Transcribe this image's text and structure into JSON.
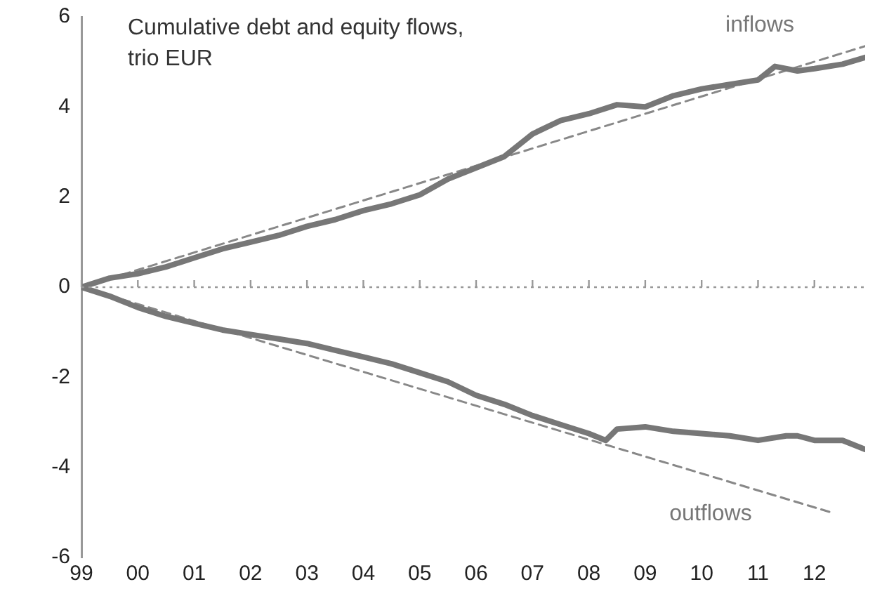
{
  "chart_data": {
    "type": "line",
    "title": "Cumulative debt and equity flows, trio EUR",
    "xlim": [
      1999,
      2012.9
    ],
    "xticks": [
      {
        "value": 1999,
        "label": "99"
      },
      {
        "value": 2000,
        "label": "00"
      },
      {
        "value": 2001,
        "label": "01"
      },
      {
        "value": 2002,
        "label": "02"
      },
      {
        "value": 2003,
        "label": "03"
      },
      {
        "value": 2004,
        "label": "04"
      },
      {
        "value": 2005,
        "label": "05"
      },
      {
        "value": 2006,
        "label": "06"
      },
      {
        "value": 2007,
        "label": "07"
      },
      {
        "value": 2008,
        "label": "08"
      },
      {
        "value": 2009,
        "label": "09"
      },
      {
        "value": 2010,
        "label": "10"
      },
      {
        "value": 2011,
        "label": "11"
      },
      {
        "value": 2012,
        "label": "12"
      }
    ],
    "ylim": [
      -6,
      6
    ],
    "yticks": [
      -6,
      -4,
      -2,
      0,
      2,
      4,
      6
    ],
    "grid": false,
    "legend": false,
    "marker": "none",
    "ref_lines": [
      {
        "axis": "y",
        "value": 0,
        "line_style": "dotted",
        "color": "#999999"
      }
    ],
    "series": [
      {
        "name": "inflows",
        "color": "#777777",
        "line_style": "solid",
        "x": [
          1999,
          1999.5,
          2000,
          2000.5,
          2001,
          2001.5,
          2002,
          2002.5,
          2003,
          2003.5,
          2004,
          2004.5,
          2005,
          2005.5,
          2006,
          2006.5,
          2007,
          2007.5,
          2008,
          2008.5,
          2009,
          2009.5,
          2010,
          2010.5,
          2011,
          2011.3,
          2011.7,
          2012,
          2012.5,
          2012.9
        ],
        "values": [
          0,
          0.2,
          0.3,
          0.45,
          0.65,
          0.85,
          1.0,
          1.15,
          1.35,
          1.5,
          1.7,
          1.85,
          2.05,
          2.4,
          2.65,
          2.9,
          3.4,
          3.7,
          3.85,
          4.05,
          4.0,
          4.25,
          4.4,
          4.5,
          4.6,
          4.9,
          4.8,
          4.85,
          4.95,
          5.1
        ]
      },
      {
        "name": "outflows",
        "color": "#777777",
        "line_style": "solid",
        "x": [
          1999,
          1999.5,
          2000,
          2000.5,
          2001,
          2001.5,
          2002,
          2002.5,
          2003,
          2003.5,
          2004,
          2004.5,
          2005,
          2005.5,
          2006,
          2006.5,
          2007,
          2007.5,
          2008,
          2008.3,
          2008.5,
          2009,
          2009.5,
          2010,
          2010.5,
          2011,
          2011.5,
          2011.7,
          2012,
          2012.5,
          2012.9
        ],
        "values": [
          0,
          -0.2,
          -0.45,
          -0.65,
          -0.8,
          -0.95,
          -1.05,
          -1.15,
          -1.25,
          -1.4,
          -1.55,
          -1.7,
          -1.9,
          -2.1,
          -2.4,
          -2.6,
          -2.85,
          -3.05,
          -3.25,
          -3.4,
          -3.15,
          -3.1,
          -3.2,
          -3.25,
          -3.3,
          -3.4,
          -3.3,
          -3.3,
          -3.4,
          -3.4,
          -3.6
        ]
      },
      {
        "color": "#888888",
        "line_style": "dashed",
        "x": [
          1999,
          2012.9
        ],
        "values": [
          0,
          5.35
        ]
      },
      {
        "color": "#888888",
        "line_style": "dashed",
        "x": [
          1999,
          2012.3
        ],
        "values": [
          0,
          -5.0
        ]
      }
    ]
  }
}
